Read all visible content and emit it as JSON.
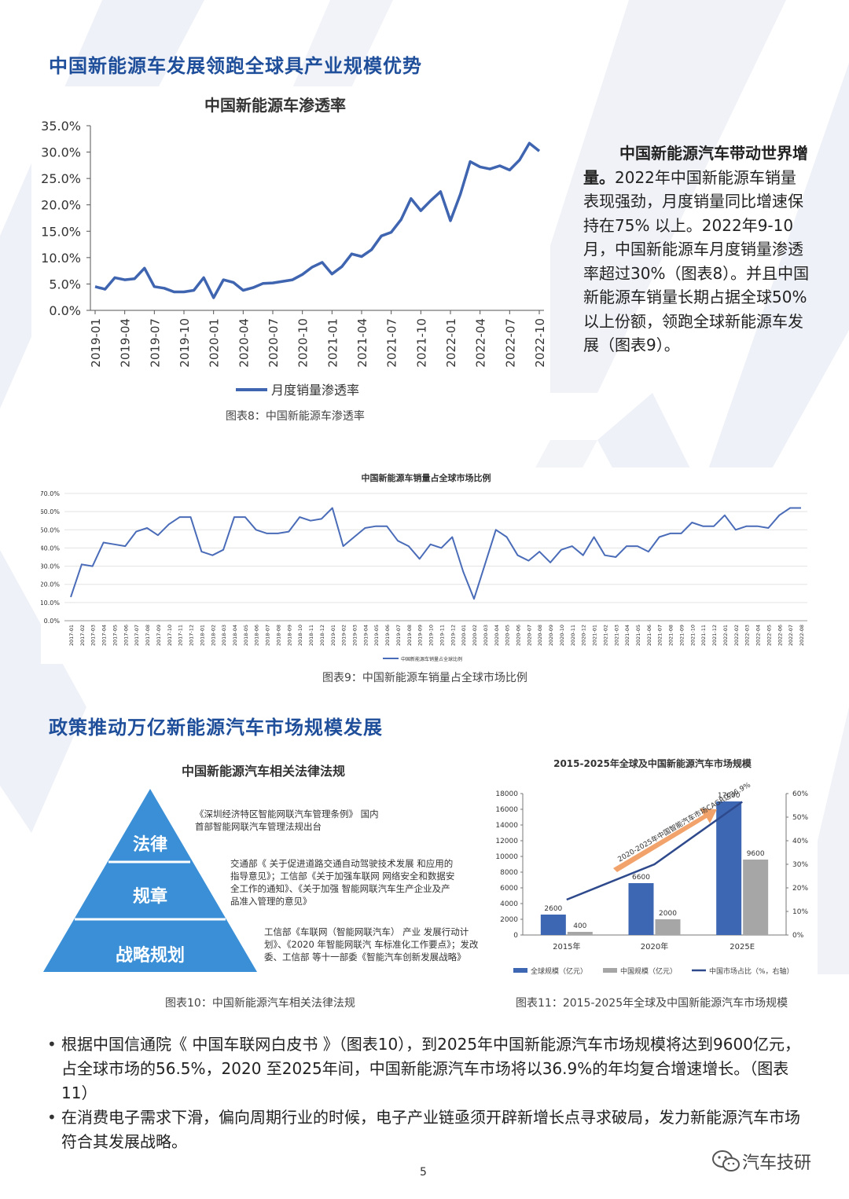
{
  "sections": {
    "s1_title": "中国新能源车发展领跑全球具产业规模优势",
    "s2_title": "政策推动万亿新能源汽车市场规模发展"
  },
  "chart8": {
    "type": "line",
    "title": "中国新能源车渗透率",
    "legend": "月度销量渗透率",
    "caption": "图表8：中国新能源车渗透率",
    "ylim": [
      0,
      35
    ],
    "yticks": [
      "0.0%",
      "5.0%",
      "10.0%",
      "15.0%",
      "20.0%",
      "25.0%",
      "30.0%",
      "35.0%"
    ],
    "xticks": [
      "2019-01",
      "2019-04",
      "2019-07",
      "2019-10",
      "2020-01",
      "2020-04",
      "2020-07",
      "2020-10",
      "2021-01",
      "2021-04",
      "2021-07",
      "2021-10",
      "2022-01",
      "2022-04",
      "2022-07",
      "2022-10"
    ],
    "values": [
      4.5,
      4.0,
      6.2,
      5.8,
      6.0,
      8.0,
      4.5,
      4.2,
      3.5,
      3.5,
      3.8,
      6.2,
      2.4,
      5.8,
      5.3,
      3.8,
      4.3,
      5.1,
      5.2,
      5.5,
      5.8,
      6.8,
      8.2,
      9.1,
      6.9,
      8.3,
      10.7,
      10.2,
      11.5,
      14.1,
      14.8,
      17.2,
      21.2,
      18.9,
      20.8,
      22.5,
      17.0,
      22.0,
      28.2,
      27.2,
      26.8,
      27.4,
      26.6,
      28.5,
      31.7,
      30.2
    ],
    "color": "#3f64b0"
  },
  "text_block": {
    "bold": "中国新能源汽车带动世界增量。",
    "rest": "2022年中国新能源车销量表现强劲，月度销量同比增速保持在75% 以上。2022年9-10月，中国新能源车月度销量渗透率超过30%（图表8）。并且中国新能源车销量长期占据全球50%以上份额，领跑全球新能源车发展（图表9）。"
  },
  "chart9": {
    "type": "line",
    "title": "中国新能源车销量占全球市场比例",
    "legend": "中国新能源车销量占全球比例",
    "caption": "图表9：中国新能源车销量占全球市场比例",
    "ylim": [
      0,
      70
    ],
    "yticks": [
      "0.0%",
      "10.0%",
      "20.0%",
      "30.0%",
      "40.0%",
      "50.0%",
      "60.0%",
      "70.0%"
    ],
    "xticks": [
      "2017-01",
      "2017-02",
      "2017-03",
      "2017-04",
      "2017-05",
      "2017-06",
      "2017-07",
      "2017-08",
      "2017-09",
      "2017-10",
      "2017-11",
      "2017-12",
      "2018-01",
      "2018-02",
      "2018-03",
      "2018-04",
      "2018-05",
      "2018-06",
      "2018-07",
      "2018-08",
      "2018-09",
      "2018-10",
      "2018-11",
      "2018-12",
      "2019-01",
      "2019-02",
      "2019-03",
      "2019-04",
      "2019-05",
      "2019-06",
      "2019-07",
      "2019-08",
      "2019-09",
      "2019-10",
      "2019-11",
      "2019-12",
      "2020-01",
      "2020-02",
      "2020-03",
      "2020-04",
      "2020-05",
      "2020-06",
      "2020-07",
      "2020-08",
      "2020-09",
      "2020-10",
      "2020-11",
      "2020-12",
      "2021-01",
      "2021-02",
      "2021-03",
      "2021-04",
      "2021-05",
      "2021-06",
      "2021-07",
      "2021-08",
      "2021-09",
      "2021-10",
      "2021-11",
      "2021-12",
      "2022-01",
      "2022-02",
      "2022-03",
      "2022-04",
      "2022-05",
      "2022-06",
      "2022-07",
      "2022-08"
    ],
    "values": [
      13,
      31,
      30,
      43,
      42,
      41,
      49,
      51,
      47,
      53,
      57,
      57,
      38,
      36,
      39,
      57,
      57,
      50,
      48,
      48,
      49,
      57,
      55,
      56,
      62,
      41,
      46,
      51,
      52,
      52,
      44,
      41,
      34,
      42,
      40,
      46,
      27,
      12,
      31,
      50,
      46,
      36,
      33,
      38,
      32,
      39,
      41,
      36,
      46,
      36,
      35,
      41,
      41,
      38,
      46,
      48,
      48,
      54,
      52,
      52,
      58,
      50,
      52,
      52,
      51,
      58,
      62,
      62
    ],
    "color": "#4a6cb8"
  },
  "pyramid": {
    "title": "中国新能源汽车相关法律法规",
    "levels": [
      "法律",
      "规章",
      "战略规划"
    ],
    "notes": [
      "《深圳经济特区智能网联汽车管理条例》 国内首部智能网联汽车管理法规出台",
      "交通部《 关于促进道路交通自动驾驶技术发展 和应用的指导意见》；工信部《关于加强车联网 网络安全和数据安全工作的通知》、《关于加强 智能网联汽车生产企业及产品准入管理的意见》",
      "工信部《车联网（智能网联汽车） 产业 发展行动计划》、《2020 年智能网联汽 车标准化工作要点》；发改委、工信部 等十一部委《智能汽车创新发展战略》"
    ],
    "caption": "图表10：中国新能源汽车相关法律法规",
    "color": "#3a8fd6"
  },
  "chart11": {
    "type": "bar",
    "title": "2015-2025年全球及中国新能源汽车市场规模",
    "categories": [
      "2015年",
      "2020年",
      "2025E"
    ],
    "series": [
      {
        "name": "全球规模（亿元）",
        "values": [
          2600,
          6600,
          17000
        ],
        "color": "#3d67b3"
      },
      {
        "name": "中国规模（亿元）",
        "values": [
          400,
          2000,
          9600
        ],
        "color": "#a6a6a6"
      },
      {
        "name": "中国市场占比（%，右轴）",
        "values": [
          15,
          30,
          56.5
        ],
        "color": "#2e4a8c"
      }
    ],
    "ylim_left": [
      0,
      18000
    ],
    "ylim_right": [
      0,
      60
    ],
    "yticks_left": [
      "0",
      "2000",
      "4000",
      "6000",
      "8000",
      "10000",
      "12000",
      "14000",
      "16000",
      "18000"
    ],
    "yticks_right": [
      "0%",
      "10%",
      "20%",
      "30%",
      "40%",
      "50%",
      "60%"
    ],
    "annotation": "2020-2025年中国智能汽车市场CAGR达36.9%",
    "caption": "图表11：2015-2025年全球及中国新能源汽车市场规模"
  },
  "bullets": [
    "根据中国信通院《 中国车联网白皮书 》（图表10），到2025年中国新能源汽车市场规模将达到9600亿元，占全球市场的56.5%，2020 至2025年间，中国新能源汽车市场将以36.9%的年均复合增速增长。（图表11）",
    "在消费电子需求下滑，偏向周期行业的时候，电子产业链亟须开辟新增长点寻求破局，发力新能源汽车市场符合其发展战略。"
  ],
  "footer": {
    "page": "5",
    "watermark": "汽车技研"
  }
}
